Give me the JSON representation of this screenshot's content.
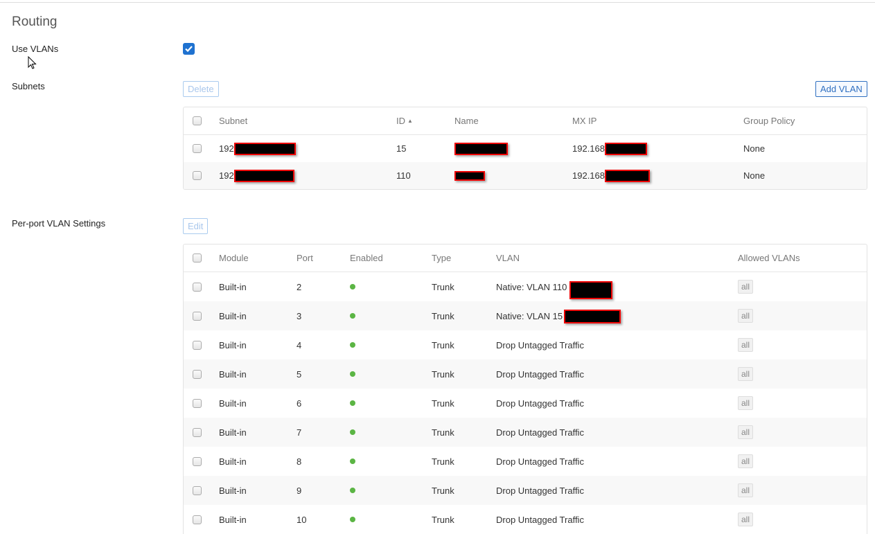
{
  "page": {
    "title": "Routing"
  },
  "use_vlans": {
    "label": "Use VLANs",
    "checked": true
  },
  "subnets": {
    "label": "Subnets",
    "delete_label": "Delete",
    "add_label": "Add VLAN",
    "headers": [
      "Subnet",
      "ID",
      "Name",
      "MX IP",
      "Group Policy"
    ],
    "sort_indicator": "▲",
    "rows": [
      {
        "subnet": "192",
        "id": "15",
        "mx_ip": "192.168",
        "group_policy": "None"
      },
      {
        "subnet": "192",
        "id": "110",
        "mx_ip": "192.168",
        "group_policy": "None"
      }
    ]
  },
  "ports": {
    "label": "Per-port VLAN Settings",
    "edit_label": "Edit",
    "headers": [
      "Module",
      "Port",
      "Enabled",
      "Type",
      "VLAN",
      "Allowed VLANs"
    ],
    "enabled_color": "#5bb544",
    "rows": [
      {
        "module": "Built-in",
        "port": "2",
        "enabled": true,
        "type": "Trunk",
        "vlan": "Native: VLAN 110",
        "allowed": "all"
      },
      {
        "module": "Built-in",
        "port": "3",
        "enabled": true,
        "type": "Trunk",
        "vlan": "Native: VLAN 15",
        "allowed": "all"
      },
      {
        "module": "Built-in",
        "port": "4",
        "enabled": true,
        "type": "Trunk",
        "vlan": "Drop Untagged Traffic",
        "allowed": "all"
      },
      {
        "module": "Built-in",
        "port": "5",
        "enabled": true,
        "type": "Trunk",
        "vlan": "Drop Untagged Traffic",
        "allowed": "all"
      },
      {
        "module": "Built-in",
        "port": "6",
        "enabled": true,
        "type": "Trunk",
        "vlan": "Drop Untagged Traffic",
        "allowed": "all"
      },
      {
        "module": "Built-in",
        "port": "7",
        "enabled": true,
        "type": "Trunk",
        "vlan": "Drop Untagged Traffic",
        "allowed": "all"
      },
      {
        "module": "Built-in",
        "port": "8",
        "enabled": true,
        "type": "Trunk",
        "vlan": "Drop Untagged Traffic",
        "allowed": "all"
      },
      {
        "module": "Built-in",
        "port": "9",
        "enabled": true,
        "type": "Trunk",
        "vlan": "Drop Untagged Traffic",
        "allowed": "all"
      },
      {
        "module": "Built-in",
        "port": "10",
        "enabled": true,
        "type": "Trunk",
        "vlan": "Drop Untagged Traffic",
        "allowed": "all"
      }
    ]
  }
}
